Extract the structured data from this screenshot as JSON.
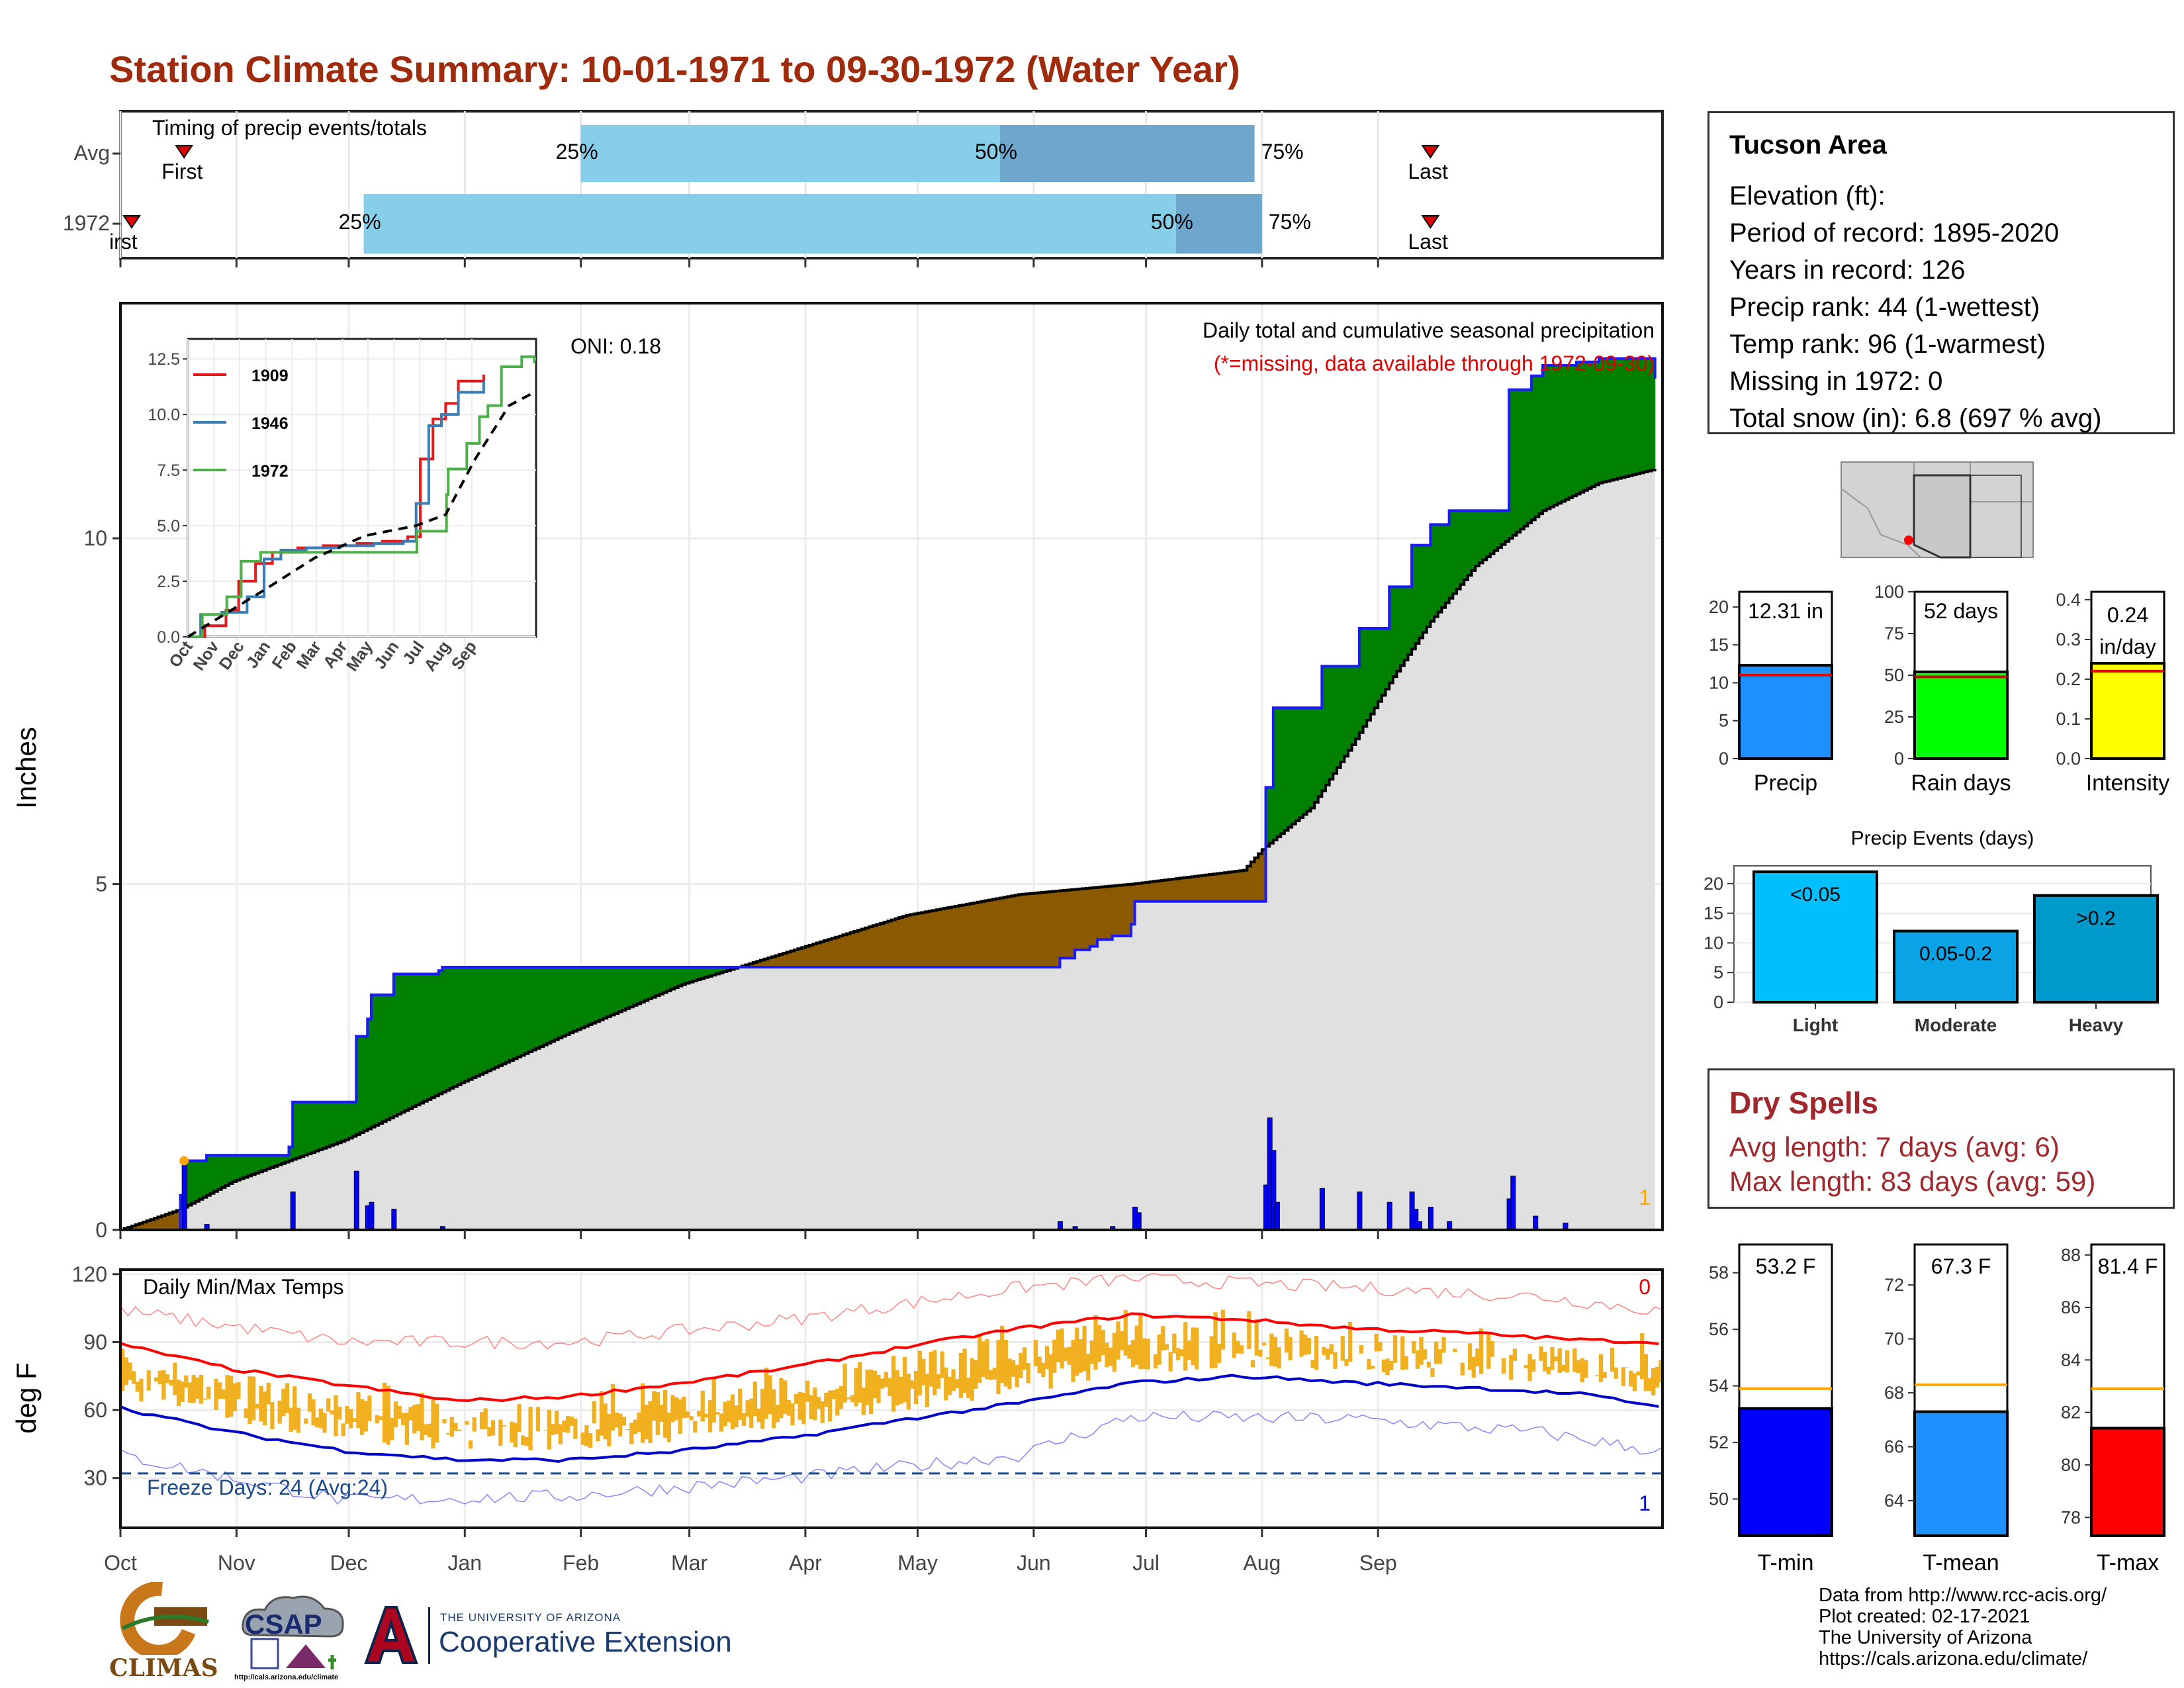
{
  "title": "Station Climate Summary: 10-01-1971 to 09-30-1972 (Water Year)",
  "info": {
    "station": "Tucson Area",
    "lines": [
      "Elevation (ft):",
      "Period of record: 1895-2020",
      "Years in record: 126",
      "Precip rank: 44 (1-wettest)",
      "Temp rank: 96 (1-warmest)",
      "Missing in 1972: 0",
      "Total snow (in): 6.8 (697 % avg)"
    ]
  },
  "dry_spells": {
    "title": "Dry Spells",
    "avg_length": "Avg length: 7 days (avg: 6)",
    "max_length": "Max length: 83 days (avg: 59)"
  },
  "footer": {
    "lines": [
      "Data from http://www.rcc-acis.org/",
      "Plot created: 02-17-2021",
      "The University of Arizona",
      "https://cals.arizona.edu/climate/"
    ]
  },
  "logos": {
    "climas": "CLIMAS",
    "csap": "CSAP",
    "csap_url": "http://cals.arizona.edu/climate",
    "ua_small": "THE UNIVERSITY OF ARIZONA",
    "ua_big": "Cooperative Extension"
  },
  "colors": {
    "title": "#a02b0c",
    "green": "#008000",
    "brown": "#8b5a00",
    "gray": "#e0e0e0",
    "precip_bar": "#0000ff",
    "temp_bar": "#f0b020",
    "tmax_line": "#ff0000",
    "tmin_line": "#0000cc",
    "light_blue": "#87ceeb",
    "mid_blue": "#6fa6cd"
  },
  "chart_data": [
    {
      "id": "timing",
      "type": "bar",
      "title": "Timing of precip events/totals",
      "rows": [
        {
          "label": "Avg",
          "first": "First",
          "last": "Last",
          "first_day": 17,
          "last_day": 350,
          "p25_day": 123,
          "p50_day": 235,
          "p75_day": 303
        },
        {
          "label": "1972",
          "first": "irst",
          "last": "Last",
          "first_day": 3,
          "last_day": 350,
          "p25_day": 65,
          "p50_day": 282,
          "p75_day": 305
        }
      ],
      "pct_labels": [
        "25%",
        "50%",
        "75%"
      ]
    },
    {
      "id": "precip",
      "type": "area",
      "title": "Daily total and cumulative seasonal precipitation",
      "subtitle": "(*=missing, data available through 1972-09-30)",
      "annotation": "ONI: 0.18",
      "ylabel": "Inches",
      "yticks": [
        0,
        5,
        10
      ],
      "ylim": [
        0,
        13.4
      ],
      "missing_count": "1",
      "months": [
        "Oct",
        "Nov",
        "Dec",
        "Jan",
        "Feb",
        "Mar",
        "Apr",
        "May",
        "Jun",
        "Jul",
        "Aug",
        "Sep"
      ],
      "observed_cumulative": [
        [
          0,
          0
        ],
        [
          16,
          0.5
        ],
        [
          17,
          1.0
        ],
        [
          23,
          1.08
        ],
        [
          45,
          1.2
        ],
        [
          46,
          1.85
        ],
        [
          62,
          1.85
        ],
        [
          63,
          2.8
        ],
        [
          66,
          3.05
        ],
        [
          67,
          3.4
        ],
        [
          72,
          3.4
        ],
        [
          73,
          3.7
        ],
        [
          85,
          3.75
        ],
        [
          86,
          3.8
        ],
        [
          250,
          3.8
        ],
        [
          251,
          3.93
        ],
        [
          255,
          4.05
        ],
        [
          259,
          4.1
        ],
        [
          261,
          4.2
        ],
        [
          265,
          4.25
        ],
        [
          270,
          4.42
        ],
        [
          271,
          4.75
        ],
        [
          305,
          4.75
        ],
        [
          306,
          6.4
        ],
        [
          308,
          7.55
        ],
        [
          320,
          7.55
        ],
        [
          321,
          8.15
        ],
        [
          330,
          8.15
        ],
        [
          331,
          8.7
        ],
        [
          338,
          8.7
        ],
        [
          339,
          9.3
        ],
        [
          344,
          9.3
        ],
        [
          345,
          9.9
        ],
        [
          349,
          9.9
        ],
        [
          350,
          10.2
        ],
        [
          354,
          10.2
        ],
        [
          355,
          10.4
        ],
        [
          370,
          10.4
        ],
        [
          371,
          12.15
        ],
        [
          377,
          12.35
        ],
        [
          380,
          12.5
        ],
        [
          389,
          12.55
        ],
        [
          395,
          12.6
        ],
        [
          409,
          12.6
        ],
        [
          410,
          12.31
        ]
      ],
      "avg_cumulative": [
        [
          0,
          0
        ],
        [
          16,
          0.3
        ],
        [
          30,
          0.7
        ],
        [
          60,
          1.3
        ],
        [
          90,
          2.1
        ],
        [
          120,
          2.85
        ],
        [
          150,
          3.55
        ],
        [
          180,
          4.05
        ],
        [
          210,
          4.55
        ],
        [
          240,
          4.85
        ],
        [
          270,
          5.0
        ],
        [
          300,
          5.2
        ],
        [
          305,
          5.5
        ],
        [
          318,
          6.1
        ],
        [
          330,
          7.1
        ],
        [
          340,
          8.0
        ],
        [
          350,
          8.8
        ],
        [
          362,
          9.6
        ],
        [
          380,
          10.4
        ],
        [
          395,
          10.8
        ],
        [
          410,
          11.0
        ]
      ],
      "daily_bars": [
        [
          17,
          1.0
        ],
        [
          23,
          0.08
        ],
        [
          46,
          0.55
        ],
        [
          63,
          0.85
        ],
        [
          66,
          0.35
        ],
        [
          67,
          0.4
        ],
        [
          73,
          0.3
        ],
        [
          86,
          0.05
        ],
        [
          251,
          0.12
        ],
        [
          255,
          0.05
        ],
        [
          265,
          0.05
        ],
        [
          271,
          0.33
        ],
        [
          272,
          0.25
        ],
        [
          306,
          0.65
        ],
        [
          307,
          1.62
        ],
        [
          308,
          1.15
        ],
        [
          309,
          0.4
        ],
        [
          321,
          0.6
        ],
        [
          331,
          0.55
        ],
        [
          339,
          0.4
        ],
        [
          345,
          0.55
        ],
        [
          346,
          0.3
        ],
        [
          347,
          0.12
        ],
        [
          350,
          0.33
        ],
        [
          355,
          0.12
        ],
        [
          371,
          0.45
        ],
        [
          372,
          0.78
        ],
        [
          378,
          0.2
        ],
        [
          386,
          0.1
        ]
      ],
      "inset": {
        "type": "line",
        "yticks": [
          0.0,
          2.5,
          5.0,
          7.5,
          10.0,
          12.5
        ],
        "months": [
          "Oct",
          "Nov",
          "Dec",
          "Jan",
          "Feb",
          "Mar",
          "Apr",
          "May",
          "Jun",
          "Jul",
          "Aug",
          "Sep"
        ],
        "series": [
          {
            "name": "1909",
            "color": "#e41a1c",
            "values": [
              [
                0,
                0
              ],
              [
                20,
                0.5
              ],
              [
                45,
                1.2
              ],
              [
                60,
                2.5
              ],
              [
                80,
                3.3
              ],
              [
                100,
                3.8
              ],
              [
                130,
                4.0
              ],
              [
                160,
                4.1
              ],
              [
                200,
                4.2
              ],
              [
                230,
                4.3
              ],
              [
                260,
                4.5
              ],
              [
                275,
                8.0
              ],
              [
                290,
                9.8
              ],
              [
                305,
                10.5
              ],
              [
                320,
                11.5
              ],
              [
                350,
                11.8
              ]
            ]
          },
          {
            "name": "1946",
            "color": "#377eb8",
            "values": [
              [
                0,
                0
              ],
              [
                15,
                1.0
              ],
              [
                40,
                1.1
              ],
              [
                70,
                1.8
              ],
              [
                90,
                3.5
              ],
              [
                110,
                3.9
              ],
              [
                140,
                4.0
              ],
              [
                180,
                4.1
              ],
              [
                220,
                4.2
              ],
              [
                255,
                4.3
              ],
              [
                270,
                6.0
              ],
              [
                285,
                9.5
              ],
              [
                300,
                10.0
              ],
              [
                320,
                11.0
              ],
              [
                350,
                11.5
              ]
            ]
          },
          {
            "name": "1972",
            "color": "#4daf4a",
            "values": [
              [
                0,
                0
              ],
              [
                17,
                1.0
              ],
              [
                46,
                1.8
              ],
              [
                63,
                3.4
              ],
              [
                86,
                3.8
              ],
              [
                250,
                3.8
              ],
              [
                271,
                4.75
              ],
              [
                306,
                6.4
              ],
              [
                308,
                7.55
              ],
              [
                330,
                8.7
              ],
              [
                345,
                9.9
              ],
              [
                355,
                10.4
              ],
              [
                371,
                12.15
              ],
              [
                395,
                12.6
              ],
              [
                410,
                12.31
              ]
            ]
          }
        ],
        "avg": [
          [
            0,
            0
          ],
          [
            30,
            0.7
          ],
          [
            90,
            2.1
          ],
          [
            150,
            3.55
          ],
          [
            210,
            4.55
          ],
          [
            270,
            5.0
          ],
          [
            305,
            5.5
          ],
          [
            340,
            8.0
          ],
          [
            380,
            10.4
          ],
          [
            410,
            11.0
          ]
        ]
      }
    },
    {
      "id": "temps",
      "type": "line",
      "title": "Daily Min/Max Temps",
      "ylabel": "deg F",
      "yticks": [
        30,
        60,
        90,
        120
      ],
      "ylim": [
        8,
        122
      ],
      "freeze_line": 32,
      "freeze_text": "Freeze Days: 24 (Avg:24)",
      "missing_max": "0",
      "missing_min": "1",
      "months": [
        "Oct",
        "Nov",
        "Dec",
        "Jan",
        "Feb",
        "Mar",
        "Apr",
        "May",
        "Jun",
        "Jul",
        "Aug",
        "Sep"
      ],
      "avg_max": [
        [
          0,
          89
        ],
        [
          30,
          78
        ],
        [
          60,
          71
        ],
        [
          90,
          64
        ],
        [
          120,
          66
        ],
        [
          150,
          72
        ],
        [
          180,
          79
        ],
        [
          210,
          88
        ],
        [
          240,
          96
        ],
        [
          270,
          102
        ],
        [
          300,
          100
        ],
        [
          330,
          96
        ],
        [
          360,
          94
        ],
        [
          390,
          91
        ],
        [
          410,
          90
        ]
      ],
      "avg_min": [
        [
          0,
          61
        ],
        [
          30,
          50
        ],
        [
          60,
          42
        ],
        [
          90,
          38
        ],
        [
          120,
          38
        ],
        [
          150,
          42
        ],
        [
          180,
          48
        ],
        [
          210,
          56
        ],
        [
          240,
          63
        ],
        [
          270,
          72
        ],
        [
          300,
          75
        ],
        [
          330,
          72
        ],
        [
          360,
          70
        ],
        [
          390,
          67
        ],
        [
          410,
          62
        ]
      ],
      "record_max": [
        [
          0,
          104
        ],
        [
          60,
          90
        ],
        [
          120,
          90
        ],
        [
          180,
          100
        ],
        [
          240,
          114
        ],
        [
          270,
          118
        ],
        [
          330,
          114
        ],
        [
          380,
          110
        ],
        [
          410,
          104
        ]
      ],
      "record_min": [
        [
          0,
          40
        ],
        [
          60,
          20
        ],
        [
          120,
          22
        ],
        [
          180,
          30
        ],
        [
          240,
          40
        ],
        [
          270,
          57
        ],
        [
          330,
          56
        ],
        [
          380,
          50
        ],
        [
          410,
          42
        ]
      ]
    },
    {
      "id": "summary_precip",
      "type": "bar",
      "panels": [
        {
          "label": "Precip",
          "value": 12.31,
          "avg": 11.0,
          "text": "12.31 in",
          "yticks": [
            0,
            5,
            10,
            15,
            20
          ],
          "ymax": 22,
          "color": "#1e90ff"
        },
        {
          "label": "Rain days",
          "value": 52,
          "avg": 49,
          "text": "52 days",
          "yticks": [
            0,
            25,
            50,
            75,
            100
          ],
          "ymax": 100,
          "color": "#00ff00"
        },
        {
          "label": "Intensity",
          "value": 0.24,
          "avg": 0.22,
          "text": "0.24 in/day",
          "yticks": [
            0.0,
            0.1,
            0.2,
            0.3,
            0.4
          ],
          "ymax": 0.42,
          "color": "#ffff00"
        }
      ]
    },
    {
      "id": "precip_events",
      "type": "bar",
      "title": "Precip Events (days)",
      "categories": [
        "Light",
        "Moderate",
        "Heavy"
      ],
      "bar_labels": [
        "<0.05",
        "0.05-0.2",
        ">0.2"
      ],
      "values": [
        22,
        12,
        18
      ],
      "yticks": [
        0,
        5,
        10,
        15,
        20
      ],
      "ymax": 23,
      "colors": [
        "#00bfff",
        "#0aa3e6",
        "#0099cc"
      ]
    },
    {
      "id": "summary_temp",
      "type": "bar",
      "panels": [
        {
          "label": "T-min",
          "value": 53.2,
          "avg": 53.9,
          "text": "53.2 F",
          "yticks": [
            50,
            52,
            54,
            56,
            58
          ],
          "ylim": [
            48.7,
            59
          ],
          "color": "#0000ff"
        },
        {
          "label": "T-mean",
          "value": 67.3,
          "avg": 68.3,
          "text": "67.3 F",
          "yticks": [
            64,
            66,
            68,
            70,
            72
          ],
          "ylim": [
            62.7,
            73.5
          ],
          "color": "#1e90ff"
        },
        {
          "label": "T-max",
          "value": 81.4,
          "avg": 82.9,
          "text": "81.4 F",
          "yticks": [
            78,
            80,
            82,
            84,
            86,
            88
          ],
          "ylim": [
            77.3,
            88.4
          ],
          "color": "#ff0000"
        }
      ]
    }
  ]
}
